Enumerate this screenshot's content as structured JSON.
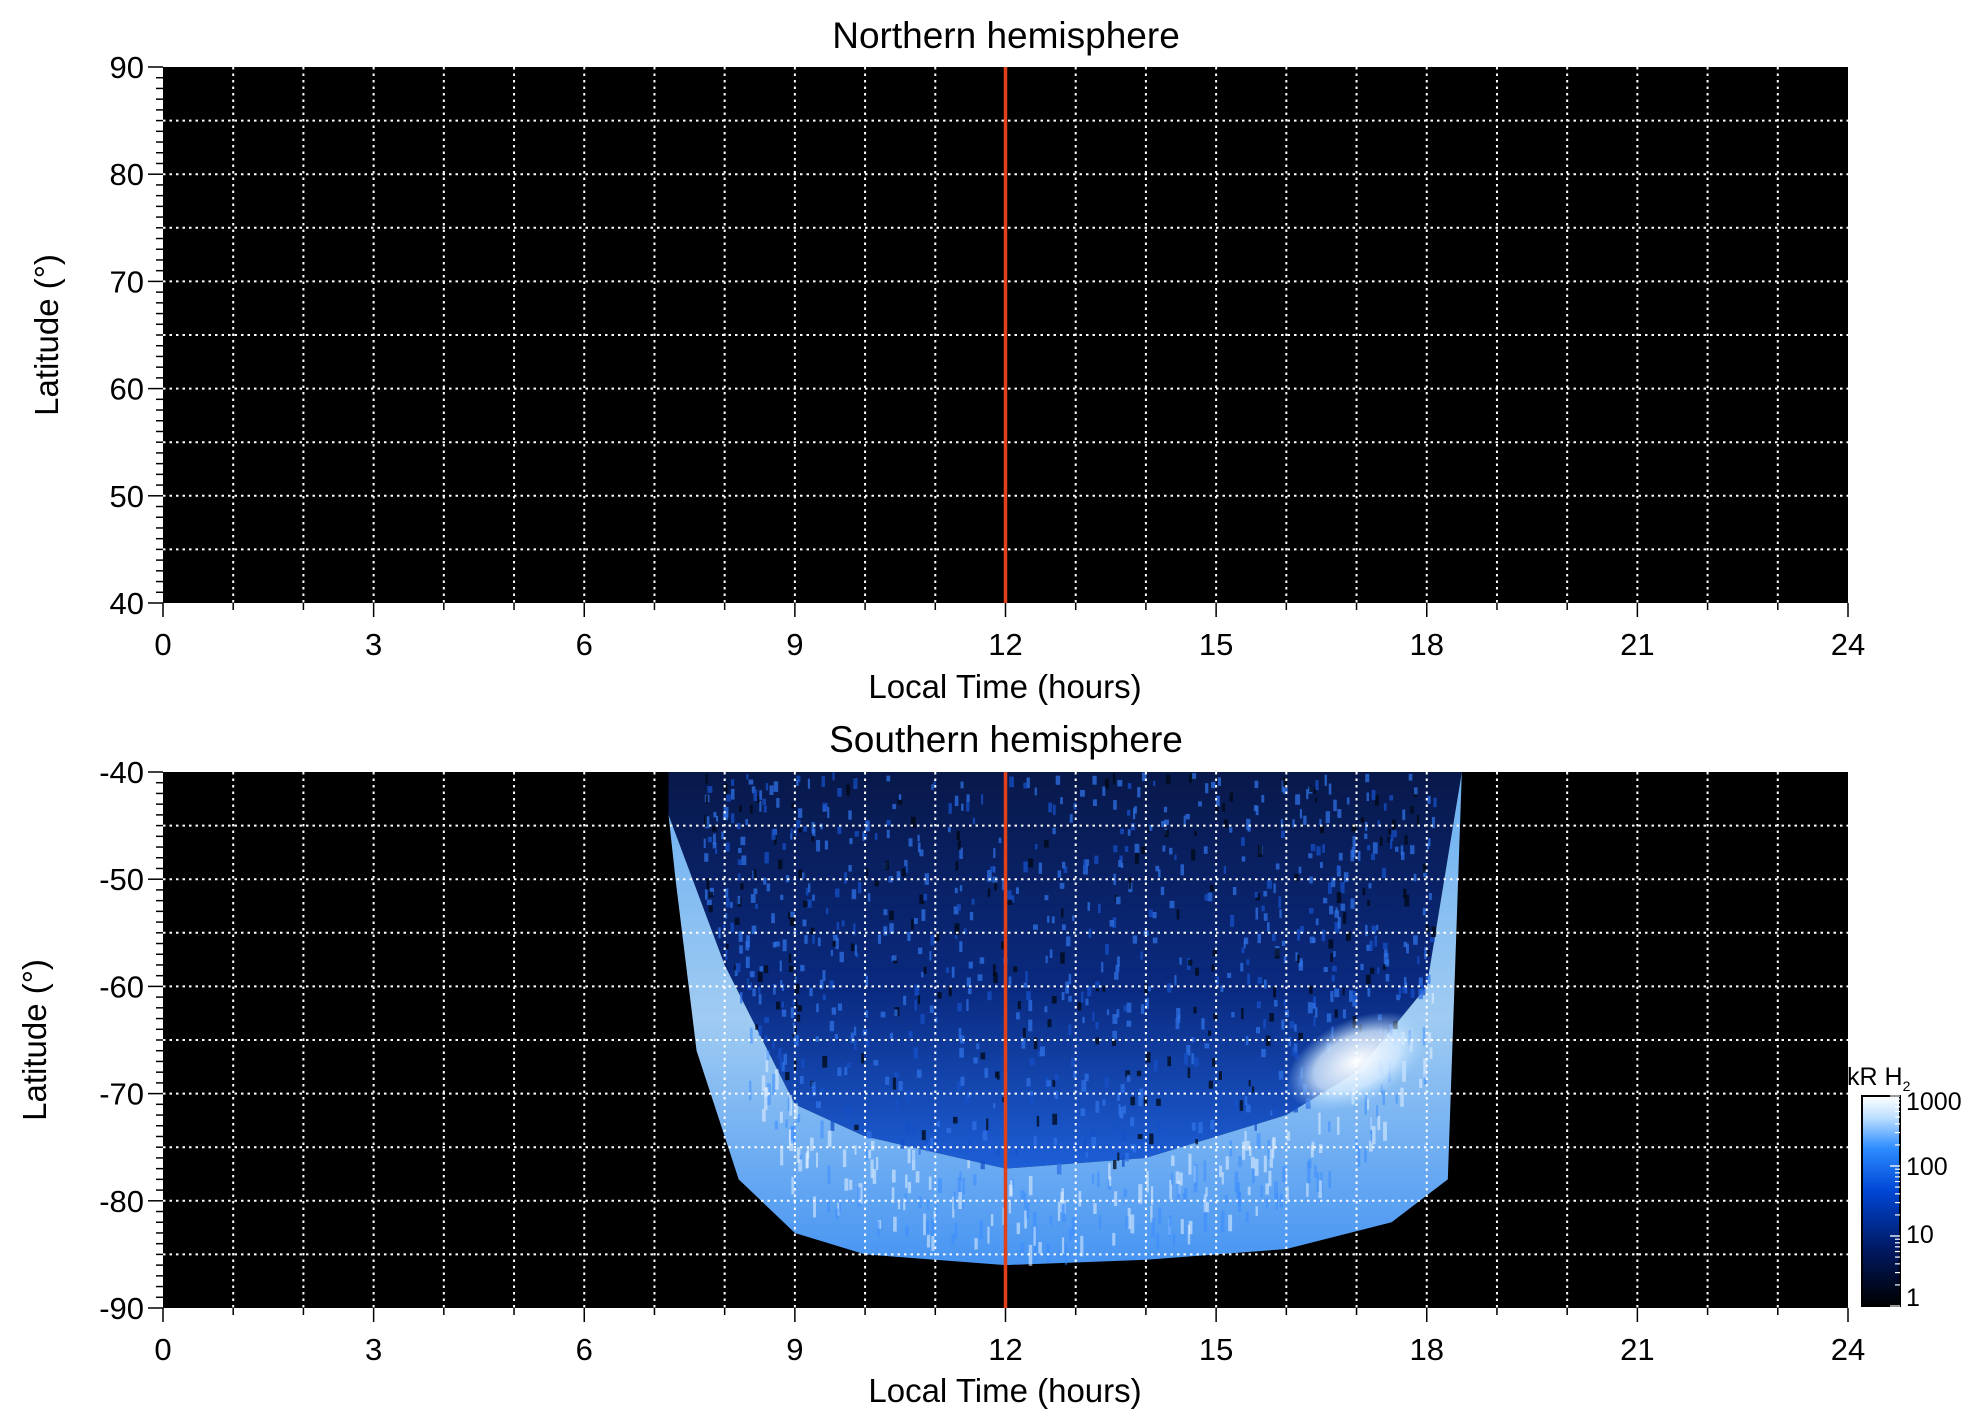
{
  "chart_data": [
    {
      "type": "heatmap",
      "title": "Northern hemisphere",
      "xlabel": "Local Time (hours)",
      "ylabel": "Latitude (°)",
      "xlim": [
        0,
        24
      ],
      "ylim": [
        40,
        90
      ],
      "xticks": [
        "0",
        "3",
        "6",
        "9",
        "12",
        "15",
        "18",
        "21",
        "24"
      ],
      "yticks": [
        "40",
        "50",
        "60",
        "70",
        "80",
        "90"
      ],
      "grid": true,
      "noon_line": {
        "x": 12,
        "color": "#e0401a"
      },
      "values": "no emission (all black)"
    },
    {
      "type": "heatmap",
      "title": "Southern hemisphere",
      "xlabel": "Local Time (hours)",
      "ylabel": "Latitude (°)",
      "xlim": [
        0,
        24
      ],
      "ylim": [
        -90,
        -40
      ],
      "xticks": [
        "0",
        "3",
        "6",
        "9",
        "12",
        "15",
        "18",
        "21",
        "24"
      ],
      "yticks": [
        "-90",
        "-80",
        "-70",
        "-60",
        "-50",
        "-40"
      ],
      "grid": true,
      "noon_line": {
        "x": 12,
        "color": "#e0401a"
      },
      "emission_region": {
        "lt_range": [
          7.2,
          18.5
        ],
        "polar_edge_lat": -86,
        "main_oval": [
          {
            "lt": 7.2,
            "lat": -44
          },
          {
            "lt": 8,
            "lat": -58
          },
          {
            "lt": 9,
            "lat": -71
          },
          {
            "lt": 10,
            "lat": -74
          },
          {
            "lt": 12,
            "lat": -77
          },
          {
            "lt": 14,
            "lat": -76
          },
          {
            "lt": 16,
            "lat": -72
          },
          {
            "lt": 17,
            "lat": -68
          },
          {
            "lt": 18,
            "lat": -60
          },
          {
            "lt": 18.5,
            "lat": -40
          }
        ],
        "peak": {
          "lt": 17,
          "lat": -67,
          "kR": 1000
        }
      },
      "colorbar": {
        "label": "kR H",
        "label_subscript": "2",
        "scale": "log",
        "ticks": [
          "1",
          "10",
          "100",
          "1000"
        ],
        "colors": [
          "#000000",
          "#001a66",
          "#0047d6",
          "#2d8cff",
          "#bfe0ff",
          "#ffffff"
        ]
      }
    }
  ]
}
